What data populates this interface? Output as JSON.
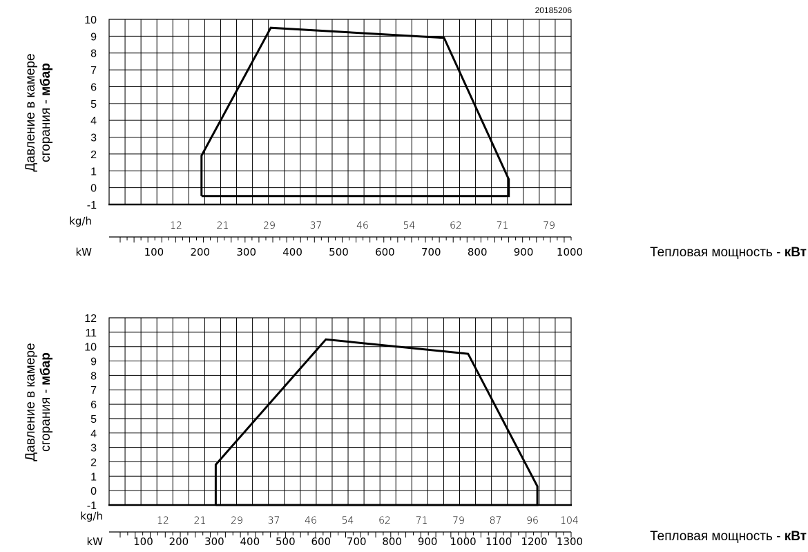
{
  "figure_code": "20185206",
  "charts": [
    {
      "ylabel_line1": "Давление в камере",
      "ylabel_line2_text": "сгорания - ",
      "ylabel_line2_bold": "мбар",
      "xlabel_text": "Тепловая мощность - ",
      "xlabel_bold": "кВт",
      "unit_kgh": "kg/h",
      "unit_kw": "kW",
      "yticks": [
        "-1",
        "0",
        "1",
        "2",
        "3",
        "4",
        "5",
        "6",
        "7",
        "8",
        "9",
        "10"
      ],
      "kw_ticks": [
        "100",
        "200",
        "300",
        "400",
        "500",
        "600",
        "700",
        "800",
        "900",
        "1000"
      ],
      "kgh_ticks": [
        "12",
        "21",
        "29",
        "37",
        "46",
        "54",
        "62",
        "71",
        "79"
      ]
    },
    {
      "ylabel_line1": "Давление в камере",
      "ylabel_line2_text": "сгорания - ",
      "ylabel_line2_bold": "мбар",
      "xlabel_text": "Тепловая мощность - ",
      "xlabel_bold": "кВт",
      "unit_kgh": "kg/h",
      "unit_kw": "kW",
      "yticks": [
        "-1",
        "0",
        "1",
        "2",
        "3",
        "4",
        "5",
        "6",
        "7",
        "8",
        "9",
        "10",
        "11",
        "12"
      ],
      "kw_ticks": [
        "100",
        "200",
        "300",
        "400",
        "500",
        "600",
        "700",
        "800",
        "900",
        "1000",
        "1100",
        "1200",
        "1300"
      ],
      "kgh_ticks": [
        "12",
        "21",
        "29",
        "37",
        "46",
        "54",
        "62",
        "71",
        "79",
        "87",
        "96",
        "104"
      ]
    }
  ],
  "chart_data": [
    {
      "type": "area",
      "title": "",
      "xlabel": "Тепловая мощность - кВт",
      "ylabel": "Давление в камере сгорания - мбар",
      "xlim": [
        0,
        1000
      ],
      "ylim": [
        -1,
        10
      ],
      "grid": true,
      "secondary_x": {
        "label": "kg/h",
        "ticks": [
          12,
          21,
          29,
          37,
          46,
          54,
          62,
          71,
          79
        ]
      },
      "series": [
        {
          "x": [
            200,
            200,
            350,
            725,
            865,
            865,
            200
          ],
          "y": [
            -0.5,
            1.9,
            9.5,
            8.9,
            0.5,
            -0.5,
            -0.5
          ]
        }
      ]
    },
    {
      "type": "area",
      "title": "",
      "xlabel": "Тепловая мощность - кВт",
      "ylabel": "Давление в камере сгорания - мбар",
      "xlim": [
        0,
        1300
      ],
      "ylim": [
        -1,
        12
      ],
      "grid": true,
      "secondary_x": {
        "label": "kg/h",
        "ticks": [
          12,
          21,
          29,
          37,
          46,
          54,
          62,
          71,
          79,
          87,
          96,
          104
        ]
      },
      "series": [
        {
          "x": [
            300,
            300,
            610,
            1010,
            1205,
            1205,
            300
          ],
          "y": [
            -1,
            1.8,
            10.5,
            9.5,
            0.3,
            -1,
            -1
          ]
        }
      ]
    }
  ]
}
